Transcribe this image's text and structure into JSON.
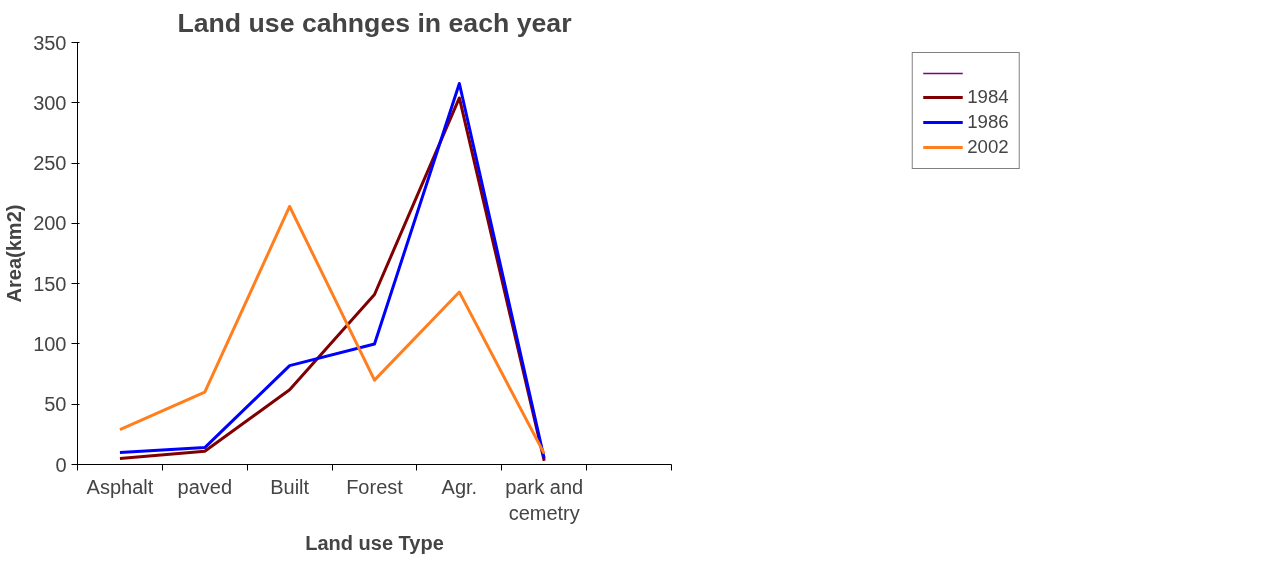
{
  "chart_data": {
    "type": "line",
    "title": "Land use cahnges in each year",
    "xlabel": "Land use Type",
    "ylabel": "Area(km2)",
    "categories": [
      "Asphalt",
      "paved",
      "Built",
      "Forest",
      "Agr.",
      "park and cemetry",
      null
    ],
    "series": [
      {
        "color": "#800080",
        "values": [
          null,
          null,
          null,
          null,
          null,
          null,
          null
        ]
      },
      {
        "name": "1984",
        "color": "#800000",
        "values": [
          5,
          11,
          62,
          141,
          304,
          3,
          null
        ]
      },
      {
        "name": "1986",
        "color": "#0000ff",
        "values": [
          10,
          14,
          82,
          100,
          316,
          5,
          null
        ]
      },
      {
        "name": "2002",
        "color": "#ff7f1f",
        "values": [
          29,
          60,
          214,
          70,
          143,
          9,
          null
        ]
      }
    ],
    "ylim": [
      0,
      350
    ],
    "yticks": [
      0,
      50,
      100,
      150,
      200,
      250,
      300,
      350
    ],
    "grid": false,
    "legend": "top right",
    "marker": "none",
    "line_style": "solid"
  }
}
